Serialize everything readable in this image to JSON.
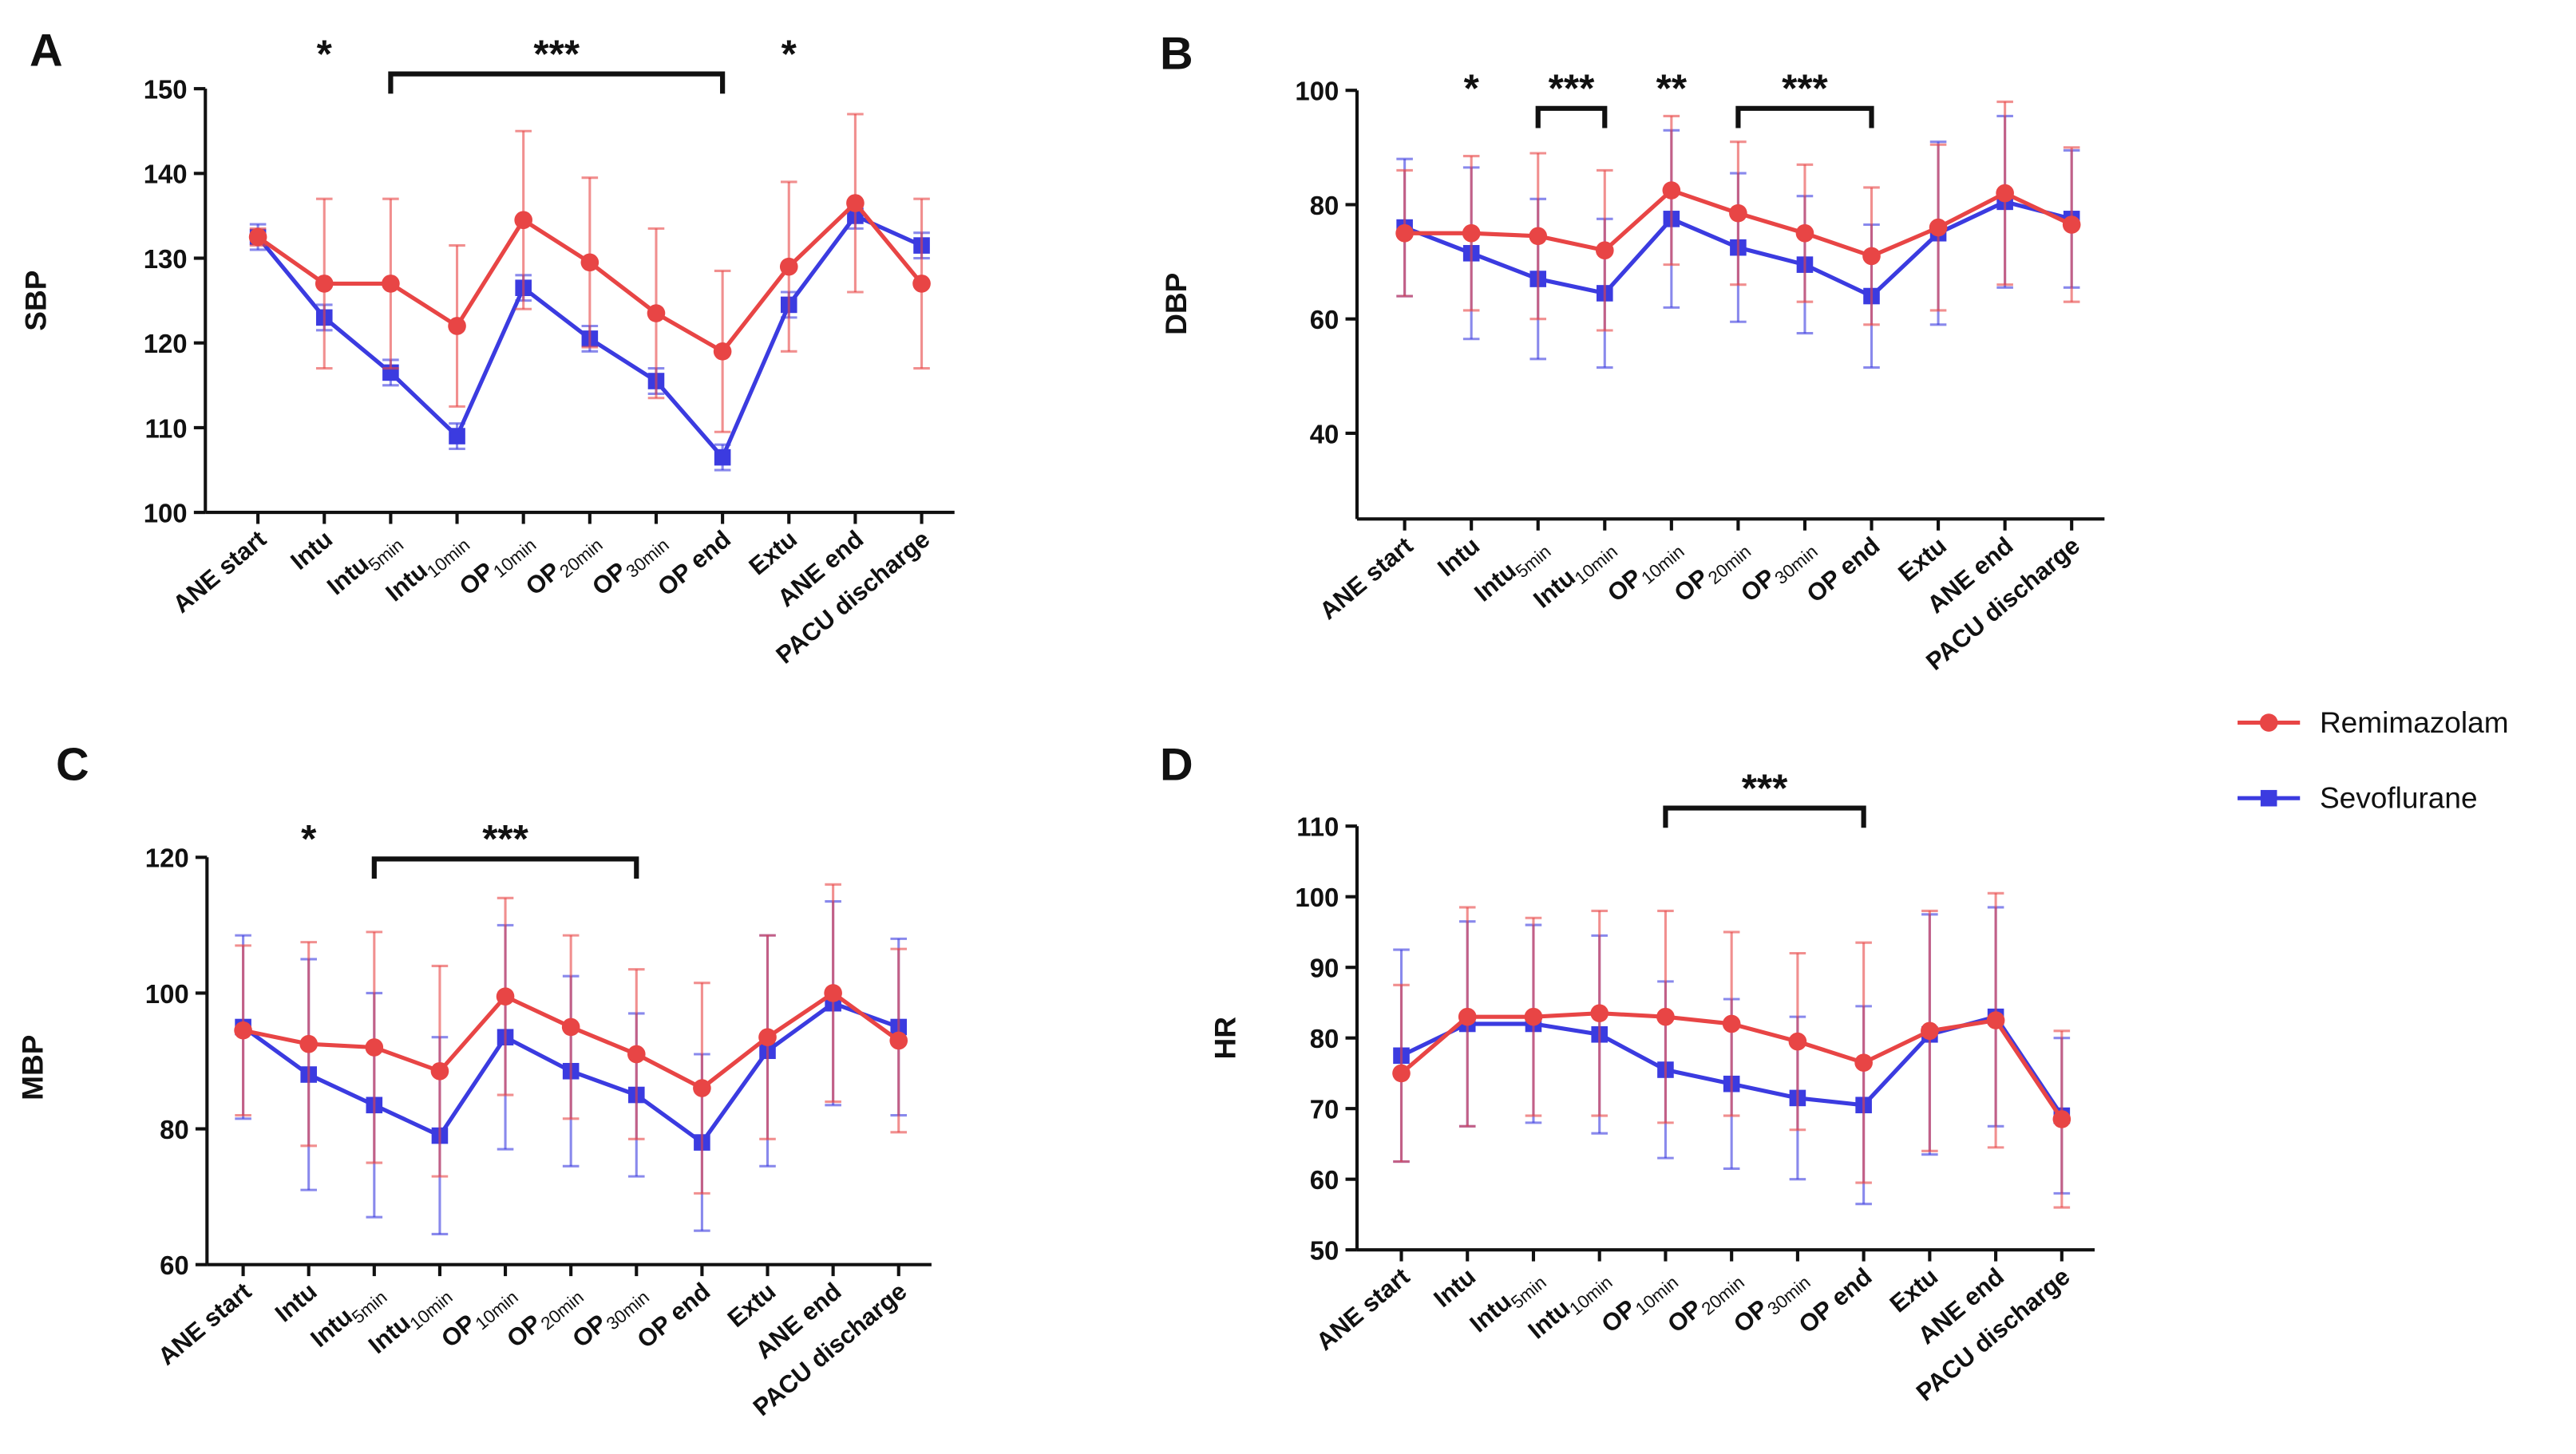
{
  "chart_data": [
    {
      "type": "line",
      "panel": "A",
      "y_label": "SBP",
      "categories": [
        "ANE start",
        "Intu",
        "Intu",
        "Intu",
        "OP",
        "OP",
        "OP",
        "OP end",
        "Extu",
        "ANE end",
        "PACU discharge"
      ],
      "category_subscripts": [
        null,
        null,
        "5min",
        "10min",
        "10min",
        "20min",
        "30min",
        null,
        null,
        null,
        null
      ],
      "ylim": [
        100,
        150
      ],
      "yticks": [
        100,
        110,
        120,
        130,
        140,
        150
      ],
      "series": [
        {
          "name": "Sevoflurane",
          "color": "#3b3be0",
          "marker": "square",
          "values": [
            132.5,
            123,
            116.5,
            109,
            126.5,
            120.5,
            115.5,
            106.5,
            124.5,
            135,
            131.5
          ],
          "errors": [
            1.5,
            1.5,
            1.5,
            1.5,
            1.5,
            1.5,
            1.5,
            1.5,
            1.5,
            1.5,
            1.5
          ]
        },
        {
          "name": "Remimazolam",
          "color": "#e84545",
          "marker": "circle",
          "values": [
            132.5,
            127,
            127,
            122,
            134.5,
            129.5,
            123.5,
            119,
            129,
            136.5,
            127
          ],
          "errors": [
            1,
            10,
            10,
            9.5,
            10.5,
            10,
            10,
            9.5,
            10,
            10.5,
            10
          ]
        }
      ],
      "annotations": [
        {
          "text": "*",
          "from": 1
        },
        {
          "text": "***",
          "from": 2,
          "to": 7
        },
        {
          "text": "*",
          "from": 8
        }
      ]
    },
    {
      "type": "line",
      "panel": "B",
      "y_label": "DBP",
      "categories": [
        "ANE start",
        "Intu",
        "Intu",
        "Intu",
        "OP",
        "OP",
        "OP",
        "OP end",
        "Extu",
        "ANE end",
        "PACU discharge"
      ],
      "category_subscripts": [
        null,
        null,
        "5min",
        "10min",
        "10min",
        "20min",
        "30min",
        null,
        null,
        null,
        null
      ],
      "ylim": [
        25,
        100
      ],
      "yticks": [
        40,
        60,
        80,
        100
      ],
      "series": [
        {
          "name": "Sevoflurane",
          "color": "#3b3be0",
          "marker": "square",
          "values": [
            76,
            71.5,
            67,
            64.5,
            77.5,
            72.5,
            69.5,
            64,
            75,
            80.5,
            77.5
          ],
          "errors": [
            12,
            15,
            14,
            13,
            15.5,
            13,
            12,
            12.5,
            16,
            15,
            12
          ]
        },
        {
          "name": "Remimazolam",
          "color": "#e84545",
          "marker": "circle",
          "values": [
            75,
            75,
            74.5,
            72,
            82.5,
            78.5,
            75,
            71,
            76,
            82,
            76.5
          ],
          "errors": [
            11,
            13.5,
            14.5,
            14,
            13,
            12.5,
            12,
            12,
            14.5,
            16,
            13.5
          ]
        }
      ],
      "annotations": [
        {
          "text": "*",
          "from": 1
        },
        {
          "text": "***",
          "from": 2,
          "to": 3
        },
        {
          "text": "**",
          "from": 4
        },
        {
          "text": "***",
          "from": 5,
          "to": 7
        }
      ]
    },
    {
      "type": "line",
      "panel": "C",
      "y_label": "MBP",
      "categories": [
        "ANE start",
        "Intu",
        "Intu",
        "Intu",
        "OP",
        "OP",
        "OP",
        "OP end",
        "Extu",
        "ANE end",
        "PACU discharge"
      ],
      "category_subscripts": [
        null,
        null,
        "5min",
        "10min",
        "10min",
        "20min",
        "30min",
        null,
        null,
        null,
        null
      ],
      "ylim": [
        60,
        120
      ],
      "yticks": [
        60,
        80,
        100,
        120
      ],
      "series": [
        {
          "name": "Sevoflurane",
          "color": "#3b3be0",
          "marker": "square",
          "values": [
            95,
            88,
            83.5,
            79,
            93.5,
            88.5,
            85,
            78,
            91.5,
            98.5,
            95
          ],
          "errors": [
            13.5,
            17,
            16.5,
            14.5,
            16.5,
            14,
            12,
            13,
            17,
            15,
            13
          ]
        },
        {
          "name": "Remimazolam",
          "color": "#e84545",
          "marker": "circle",
          "values": [
            94.5,
            92.5,
            92,
            88.5,
            99.5,
            95,
            91,
            86,
            93.5,
            100,
            93
          ],
          "errors": [
            12.5,
            15,
            17,
            15.5,
            14.5,
            13.5,
            12.5,
            15.5,
            15,
            16,
            13.5
          ]
        }
      ],
      "annotations": [
        {
          "text": "*",
          "from": 1
        },
        {
          "text": "***",
          "from": 2,
          "to": 6
        }
      ]
    },
    {
      "type": "line",
      "panel": "D",
      "y_label": "HR",
      "categories": [
        "ANE start",
        "Intu",
        "Intu",
        "Intu",
        "OP",
        "OP",
        "OP",
        "OP end",
        "Extu",
        "ANE end",
        "PACU discharge"
      ],
      "category_subscripts": [
        null,
        null,
        "5min",
        "10min",
        "10min",
        "20min",
        "30min",
        null,
        null,
        null,
        null
      ],
      "ylim": [
        50,
        110
      ],
      "yticks": [
        50,
        60,
        70,
        80,
        90,
        100,
        110
      ],
      "series": [
        {
          "name": "Sevoflurane",
          "color": "#3b3be0",
          "marker": "square",
          "values": [
            77.5,
            82,
            82,
            80.5,
            75.5,
            73.5,
            71.5,
            70.5,
            80.5,
            83,
            69
          ],
          "errors": [
            15,
            14.5,
            14,
            14,
            12.5,
            12,
            11.5,
            14,
            17,
            15.5,
            11
          ]
        },
        {
          "name": "Remimazolam",
          "color": "#e84545",
          "marker": "circle",
          "values": [
            75,
            83,
            83,
            83.5,
            83,
            82,
            79.5,
            76.5,
            81,
            82.5,
            68.5
          ],
          "errors": [
            12.5,
            15.5,
            14,
            14.5,
            15,
            13,
            12.5,
            17,
            17,
            18,
            12.5
          ]
        }
      ],
      "annotations": [
        {
          "text": "***",
          "from": 4,
          "to": 7
        }
      ]
    }
  ]
}
